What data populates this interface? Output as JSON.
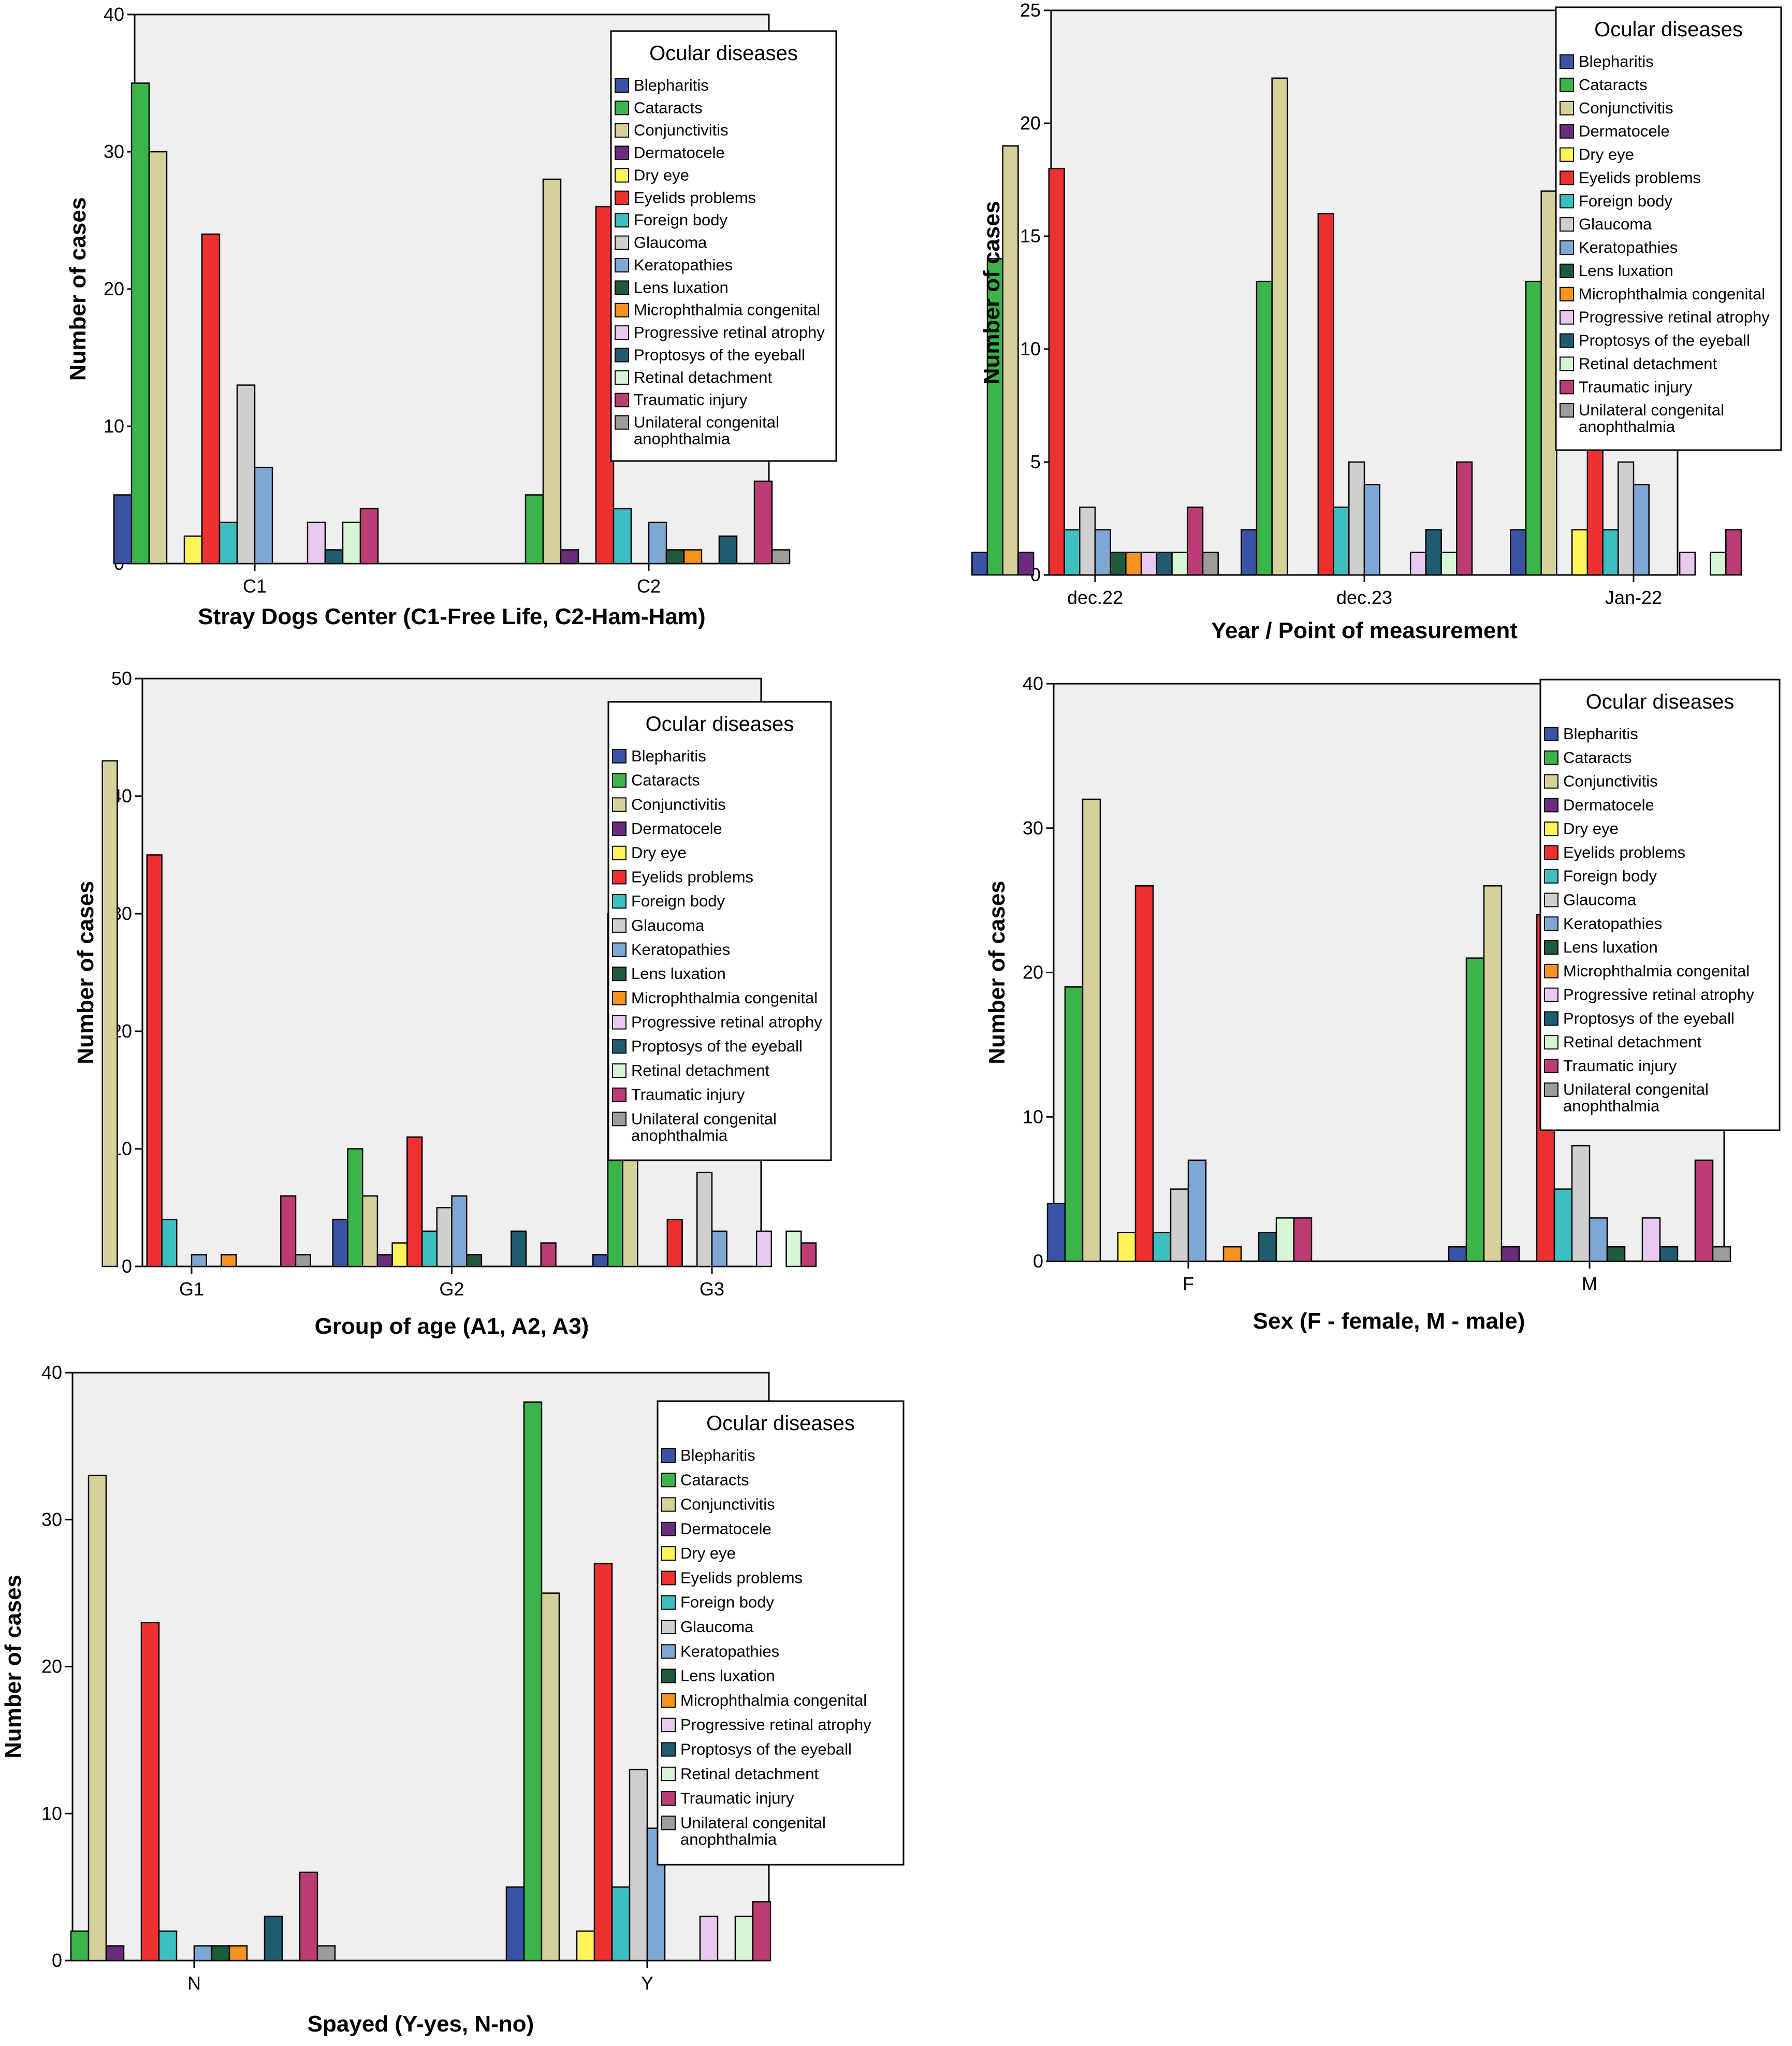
{
  "colors": {
    "Blepharitis": "#3b53a4",
    "Cataracts": "#3bb54a",
    "Conjunctivitis": "#d6d09a",
    "Dermatocele": "#6a2d7e",
    "Dry eye": "#fff35a",
    "Eyelids problems": "#ee3030",
    "Foreign body": "#3cbfc0",
    "Glaucoma": "#cfcfcf",
    "Keratopathies": "#7ea7d4",
    "Lens luxation": "#1d5b3a",
    "Microphthalmia congenital": "#f6921e",
    "Progressive retinal atrophy": "#e9c9f0",
    "Proptosys of the eyeball": "#1f5c6f",
    "Retinal detachment": "#d5f5d5",
    "Traumatic injury": "#be3c76",
    "Unilateral congenital anophthalmia": "#9c9c9c"
  },
  "chart_data": [
    {
      "type": "bar",
      "title": "",
      "xlabel": "Stray Dogs Center (C1-Free Life, C2-Ham-Ham)",
      "ylabel": "Number of cases",
      "ylim": [
        0,
        40
      ],
      "yticks": [
        "0",
        "10",
        "20",
        "30",
        "40"
      ],
      "legend_title": "Ocular diseases",
      "legend": [
        "Blepharitis",
        "Cataracts",
        "Conjunctivitis",
        "Dermatocele",
        "Dry eye",
        "Eyelids problems",
        "Foreign body",
        "Glaucoma",
        "Keratopathies",
        "Lens luxation",
        "Microphthalmia congenital",
        "Progressive retinal atrophy",
        "Proptosys of the eyeball",
        "Retinal detachment",
        "Traumatic injury",
        [
          "Unilateral congenital",
          "anophthalmia"
        ]
      ],
      "categories": [
        "C1",
        "C2"
      ],
      "series": [
        {
          "name": "Blepharitis",
          "values": [
            5,
            0
          ]
        },
        {
          "name": "Cataracts",
          "values": [
            35,
            5
          ]
        },
        {
          "name": "Conjunctivitis",
          "values": [
            30,
            28
          ]
        },
        {
          "name": "Dermatocele",
          "values": [
            0,
            1
          ]
        },
        {
          "name": "Dry eye",
          "values": [
            2,
            0
          ]
        },
        {
          "name": "Eyelids problems",
          "values": [
            24,
            26
          ]
        },
        {
          "name": "Foreign body",
          "values": [
            3,
            4
          ]
        },
        {
          "name": "Glaucoma",
          "values": [
            13,
            0
          ]
        },
        {
          "name": "Keratopathies",
          "values": [
            7,
            3
          ]
        },
        {
          "name": "Lens luxation",
          "values": [
            0,
            1
          ]
        },
        {
          "name": "Microphthalmia congenital",
          "values": [
            0,
            1
          ]
        },
        {
          "name": "Progressive retinal atrophy",
          "values": [
            3,
            0
          ]
        },
        {
          "name": "Proptosys of the eyeball",
          "values": [
            1,
            2
          ]
        },
        {
          "name": "Retinal detachment",
          "values": [
            3,
            0
          ]
        },
        {
          "name": "Traumatic injury",
          "values": [
            4,
            6
          ]
        },
        {
          "name": "Unilateral congenital anophthalmia",
          "values": [
            0,
            1
          ]
        }
      ]
    },
    {
      "type": "bar",
      "title": "",
      "xlabel": "Year / Point of measurement",
      "ylabel": "Number of cases",
      "ylim": [
        0,
        25
      ],
      "yticks": [
        "0",
        "5",
        "10",
        "15",
        "20",
        "25"
      ],
      "legend_title": "Ocular diseases",
      "legend": [
        "Blepharitis",
        "Cataracts",
        "Conjunctivitis",
        "Dermatocele",
        "Dry eye",
        "Eyelids problems",
        "Foreign body",
        "Glaucoma",
        "Keratopathies",
        "Lens luxation",
        "Microphthalmia congenital",
        "Progressive retinal atrophy",
        "Proptosys of the eyeball",
        "Retinal detachment",
        "Traumatic injury",
        [
          "Unilateral congenital",
          "anophthalmia"
        ]
      ],
      "categories": [
        "dec.22",
        "dec.23",
        "Jan-22"
      ],
      "series": [
        {
          "name": "Blepharitis",
          "values": [
            1,
            2,
            2
          ]
        },
        {
          "name": "Cataracts",
          "values": [
            14,
            13,
            13
          ]
        },
        {
          "name": "Conjunctivitis",
          "values": [
            19,
            22,
            17
          ]
        },
        {
          "name": "Dermatocele",
          "values": [
            1,
            0,
            0
          ]
        },
        {
          "name": "Dry eye",
          "values": [
            0,
            0,
            2
          ]
        },
        {
          "name": "Eyelids problems",
          "values": [
            18,
            16,
            16
          ]
        },
        {
          "name": "Foreign body",
          "values": [
            2,
            3,
            2
          ]
        },
        {
          "name": "Glaucoma",
          "values": [
            3,
            5,
            5
          ]
        },
        {
          "name": "Keratopathies",
          "values": [
            2,
            4,
            4
          ]
        },
        {
          "name": "Lens luxation",
          "values": [
            1,
            0,
            0
          ]
        },
        {
          "name": "Microphthalmia congenital",
          "values": [
            1,
            0,
            0
          ]
        },
        {
          "name": "Progressive retinal atrophy",
          "values": [
            1,
            1,
            1
          ]
        },
        {
          "name": "Proptosys of the eyeball",
          "values": [
            1,
            2,
            0
          ]
        },
        {
          "name": "Retinal detachment",
          "values": [
            1,
            1,
            1
          ]
        },
        {
          "name": "Traumatic injury",
          "values": [
            3,
            5,
            2
          ]
        },
        {
          "name": "Unilateral congenital anophthalmia",
          "values": [
            1,
            0,
            0
          ]
        }
      ]
    },
    {
      "type": "bar",
      "title": "",
      "xlabel": "Group of age (A1, A2, A3)",
      "ylabel": "Number of cases",
      "ylim": [
        0,
        50
      ],
      "yticks": [
        "0",
        "10",
        "20",
        "30",
        "40",
        "50"
      ],
      "legend_title": "Ocular diseases",
      "legend": [
        "Blepharitis",
        "Cataracts",
        "Conjunctivitis",
        "Dermatocele",
        "Dry eye",
        "Eyelids problems",
        "Foreign body",
        "Glaucoma",
        "Keratopathies",
        "Lens luxation",
        "Microphthalmia congenital",
        "Progressive retinal atrophy",
        "Proptosys of the eyeball",
        "Retinal detachment",
        "Traumatic injury",
        [
          "Unilateral congenital",
          "anophthalmia"
        ]
      ],
      "categories": [
        "G1",
        "G2",
        "G3"
      ],
      "series": [
        {
          "name": "Blepharitis",
          "values": [
            0,
            4,
            1
          ]
        },
        {
          "name": "Cataracts",
          "values": [
            0,
            10,
            30
          ]
        },
        {
          "name": "Conjunctivitis",
          "values": [
            43,
            6,
            9
          ]
        },
        {
          "name": "Dermatocele",
          "values": [
            0,
            1,
            0
          ]
        },
        {
          "name": "Dry eye",
          "values": [
            0,
            2,
            0
          ]
        },
        {
          "name": "Eyelids problems",
          "values": [
            35,
            11,
            4
          ]
        },
        {
          "name": "Foreign body",
          "values": [
            4,
            3,
            0
          ]
        },
        {
          "name": "Glaucoma",
          "values": [
            0,
            5,
            8
          ]
        },
        {
          "name": "Keratopathies",
          "values": [
            1,
            6,
            3
          ]
        },
        {
          "name": "Lens luxation",
          "values": [
            0,
            1,
            0
          ]
        },
        {
          "name": "Microphthalmia congenital",
          "values": [
            1,
            0,
            0
          ]
        },
        {
          "name": "Progressive retinal atrophy",
          "values": [
            0,
            0,
            3
          ]
        },
        {
          "name": "Proptosys of the eyeball",
          "values": [
            0,
            3,
            0
          ]
        },
        {
          "name": "Retinal detachment",
          "values": [
            0,
            0,
            3
          ]
        },
        {
          "name": "Traumatic injury",
          "values": [
            6,
            2,
            2
          ]
        },
        {
          "name": "Unilateral congenital anophthalmia",
          "values": [
            1,
            0,
            0
          ]
        }
      ]
    },
    {
      "type": "bar",
      "title": "",
      "xlabel": "Sex (F - female, M - male)",
      "ylabel": "Number of cases",
      "ylim": [
        0,
        40
      ],
      "yticks": [
        "0",
        "10",
        "20",
        "30",
        "40"
      ],
      "legend_title": "Ocular diseases",
      "legend": [
        "Blepharitis",
        "Cataracts",
        "Conjunctivitis",
        "Dermatocele",
        "Dry eye",
        "Eyelids problems",
        "Foreign body",
        "Glaucoma",
        "Keratopathies",
        "Lens luxation",
        "Microphthalmia congenital",
        "Progressive retinal atrophy",
        "Proptosys of the eyeball",
        "Retinal detachment",
        "Traumatic injury",
        [
          "Unilateral congenital",
          "anophthalmia"
        ]
      ],
      "categories": [
        "F",
        "M"
      ],
      "series": [
        {
          "name": "Blepharitis",
          "values": [
            4,
            1
          ]
        },
        {
          "name": "Cataracts",
          "values": [
            19,
            21
          ]
        },
        {
          "name": "Conjunctivitis",
          "values": [
            32,
            26
          ]
        },
        {
          "name": "Dermatocele",
          "values": [
            0,
            1
          ]
        },
        {
          "name": "Dry eye",
          "values": [
            2,
            0
          ]
        },
        {
          "name": "Eyelids problems",
          "values": [
            26,
            24
          ]
        },
        {
          "name": "Foreign body",
          "values": [
            2,
            5
          ]
        },
        {
          "name": "Glaucoma",
          "values": [
            5,
            8
          ]
        },
        {
          "name": "Keratopathies",
          "values": [
            7,
            3
          ]
        },
        {
          "name": "Lens luxation",
          "values": [
            0,
            1
          ]
        },
        {
          "name": "Microphthalmia congenital",
          "values": [
            1,
            0
          ]
        },
        {
          "name": "Progressive retinal atrophy",
          "values": [
            0,
            3
          ]
        },
        {
          "name": "Proptosys of the eyeball",
          "values": [
            2,
            1
          ]
        },
        {
          "name": "Retinal detachment",
          "values": [
            3,
            0
          ]
        },
        {
          "name": "Traumatic injury",
          "values": [
            3,
            7
          ]
        },
        {
          "name": "Unilateral congenital anophthalmia",
          "values": [
            0,
            1
          ]
        }
      ]
    },
    {
      "type": "bar",
      "title": "",
      "xlabel": "Spayed (Y-yes, N-no)",
      "ylabel": "Number of cases",
      "ylim": [
        0,
        40
      ],
      "yticks": [
        "0",
        "10",
        "20",
        "30",
        "40"
      ],
      "legend_title": "Ocular diseases",
      "legend": [
        "Blepharitis",
        "Cataracts",
        "Conjunctivitis",
        "Dermatocele",
        "Dry eye",
        "Eyelids problems",
        "Foreign body",
        "Glaucoma",
        "Keratopathies",
        "Lens luxation",
        "Microphthalmia congenital",
        "Progressive retinal atrophy",
        "Proptosys of the eyeball",
        "Retinal detachment",
        "Traumatic injury",
        [
          "Unilateral congenital",
          "anophthalmia"
        ]
      ],
      "categories": [
        "N",
        "Y"
      ],
      "series": [
        {
          "name": "Blepharitis",
          "values": [
            0,
            5
          ]
        },
        {
          "name": "Cataracts",
          "values": [
            2,
            38
          ]
        },
        {
          "name": "Conjunctivitis",
          "values": [
            33,
            25
          ]
        },
        {
          "name": "Dermatocele",
          "values": [
            1,
            0
          ]
        },
        {
          "name": "Dry eye",
          "values": [
            0,
            2
          ]
        },
        {
          "name": "Eyelids problems",
          "values": [
            23,
            27
          ]
        },
        {
          "name": "Foreign body",
          "values": [
            2,
            5
          ]
        },
        {
          "name": "Glaucoma",
          "values": [
            0,
            13
          ]
        },
        {
          "name": "Keratopathies",
          "values": [
            1,
            9
          ]
        },
        {
          "name": "Lens luxation",
          "values": [
            1,
            0
          ]
        },
        {
          "name": "Microphthalmia congenital",
          "values": [
            1,
            0
          ]
        },
        {
          "name": "Progressive retinal atrophy",
          "values": [
            0,
            3
          ]
        },
        {
          "name": "Proptosys of the eyeball",
          "values": [
            3,
            0
          ]
        },
        {
          "name": "Retinal detachment",
          "values": [
            0,
            3
          ]
        },
        {
          "name": "Traumatic injury",
          "values": [
            6,
            4
          ]
        },
        {
          "name": "Unilateral congenital anophthalmia",
          "values": [
            1,
            0
          ]
        }
      ]
    }
  ]
}
